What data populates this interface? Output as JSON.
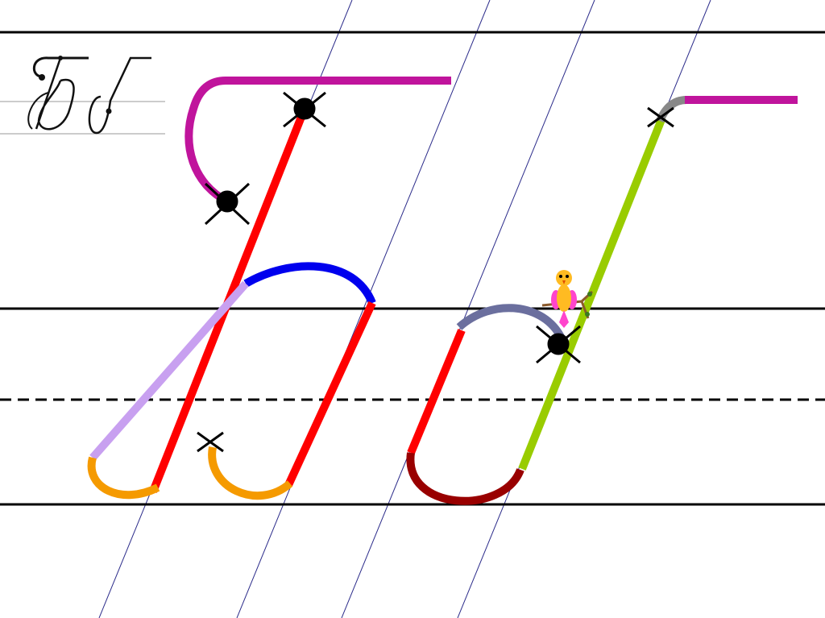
{
  "colors": {
    "ruling": "#000000",
    "slant_guides": "#2b2b8a",
    "entry_hook": "#c0149c",
    "main_stem": "#ff0000",
    "upper_loop": "#0000ee",
    "diagonal": "#c8a0f0",
    "bottom_hook": "#f59a00",
    "small_arc": "#6b6f9e",
    "small_bowl": "#990000",
    "ascender": "#99cc00",
    "top_turn": "#888888",
    "markers": "#000000"
  },
  "icons": [
    "sample-letters-image",
    "bird-on-branch-icon",
    "start-point-marker",
    "cross-marker"
  ]
}
